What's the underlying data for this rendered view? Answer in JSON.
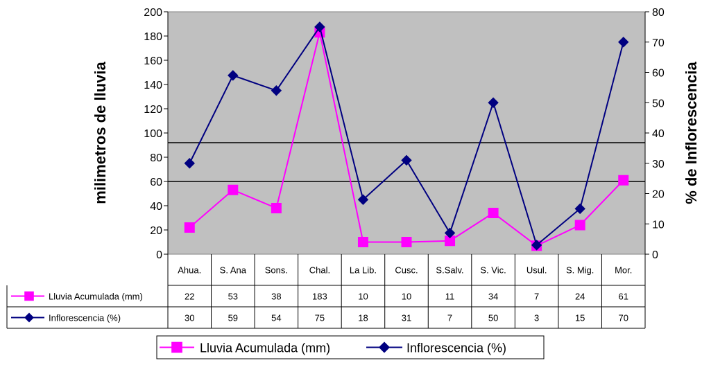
{
  "chart_data": {
    "type": "line",
    "categories": [
      "Ahua.",
      "S. Ana",
      "Sons.",
      "Chal.",
      "La Lib.",
      "Cusc.",
      "S.Salv.",
      "S. Vic.",
      "Usul.",
      "S. Mig.",
      "Mor."
    ],
    "series": [
      {
        "name": "Lluvia Acumulada (mm)",
        "axis": "left",
        "color": "#FF00FF",
        "marker": "square",
        "values": [
          22,
          53,
          38,
          183,
          10,
          10,
          11,
          34,
          7,
          24,
          61
        ]
      },
      {
        "name": "Inflorescencia (%)",
        "axis": "right",
        "color": "#000080",
        "marker": "diamond",
        "values": [
          30,
          59,
          54,
          75,
          18,
          31,
          7,
          50,
          3,
          15,
          70
        ]
      }
    ],
    "ylabel": "milimetros de lluvia",
    "ylabel_right": "% de Inflorescencia",
    "ylim": [
      0,
      200
    ],
    "ylim_right": [
      0,
      80
    ],
    "yticks": [
      "0",
      "20",
      "40",
      "60",
      "80",
      "100",
      "120",
      "140",
      "160",
      "180",
      "200"
    ],
    "yticks_right": [
      "0",
      "10",
      "20",
      "30",
      "40",
      "50",
      "60",
      "70",
      "80"
    ],
    "reference_lines_left_axis": [
      92,
      60
    ],
    "plot_background": "#C0C0C0",
    "data_table": true,
    "legend_position": "bottom"
  }
}
